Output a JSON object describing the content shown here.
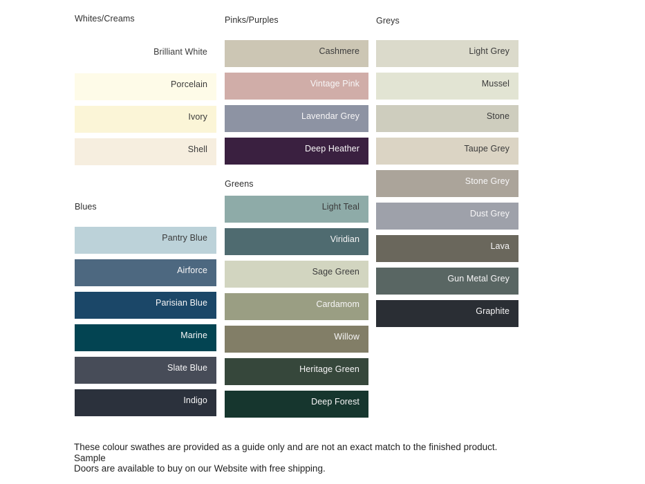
{
  "page": {
    "background": "#ffffff",
    "footer_note": "These colour swathes are provided as a guide only and are not an exact match to the finished product.  Sample\nDoors are available to buy on our Website with free shipping."
  },
  "sections": [
    {
      "id": "whites-creams",
      "title": "Whites/Creams",
      "swatches": [
        {
          "name": "Brilliant White",
          "color": "#ffffff",
          "text": "dark"
        },
        {
          "name": "Porcelain",
          "color": "#fefbe8",
          "text": "dark"
        },
        {
          "name": "Ivory",
          "color": "#fbf5d7",
          "text": "dark"
        },
        {
          "name": "Shell",
          "color": "#f6eedf",
          "text": "dark"
        }
      ]
    },
    {
      "id": "blues",
      "title": "Blues",
      "swatches": [
        {
          "name": "Pantry Blue",
          "color": "#bcd2d9",
          "text": "dark"
        },
        {
          "name": "Airforce",
          "color": "#4d6880",
          "text": "light"
        },
        {
          "name": "Parisian Blue",
          "color": "#1b4768",
          "text": "light"
        },
        {
          "name": "Marine",
          "color": "#034452",
          "text": "light"
        },
        {
          "name": "Slate Blue",
          "color": "#474c58",
          "text": "light"
        },
        {
          "name": "Indigo",
          "color": "#2b313c",
          "text": "light"
        }
      ]
    },
    {
      "id": "pinks-purples",
      "title": "Pinks/Purples",
      "swatches": [
        {
          "name": "Cashmere",
          "color": "#ccc6b4",
          "text": "dark"
        },
        {
          "name": "Vintage Pink",
          "color": "#d0ada8",
          "text": "light"
        },
        {
          "name": "Lavendar Grey",
          "color": "#8d93a3",
          "text": "light"
        },
        {
          "name": "Deep Heather",
          "color": "#3a2040",
          "text": "light"
        }
      ]
    },
    {
      "id": "greens",
      "title": "Greens",
      "swatches": [
        {
          "name": "Light Teal",
          "color": "#8eaba8",
          "text": "dark"
        },
        {
          "name": "Viridian",
          "color": "#4f6b70",
          "text": "light"
        },
        {
          "name": "Sage Green",
          "color": "#d2d5c0",
          "text": "dark"
        },
        {
          "name": "Cardamom",
          "color": "#9a9e83",
          "text": "light"
        },
        {
          "name": "Willow",
          "color": "#827e67",
          "text": "light"
        },
        {
          "name": "Heritage Green",
          "color": "#36473b",
          "text": "light"
        },
        {
          "name": "Deep Forest",
          "color": "#16362e",
          "text": "light"
        }
      ]
    },
    {
      "id": "greys",
      "title": "Greys",
      "swatches": [
        {
          "name": "Light Grey",
          "color": "#dbdacb",
          "text": "dark"
        },
        {
          "name": "Mussel",
          "color": "#e2e4d3",
          "text": "dark"
        },
        {
          "name": "Stone",
          "color": "#cecdbe",
          "text": "dark"
        },
        {
          "name": "Taupe Grey",
          "color": "#dbd4c4",
          "text": "dark"
        },
        {
          "name": "Stone Grey",
          "color": "#aba49a",
          "text": "light"
        },
        {
          "name": "Dust Grey",
          "color": "#9ea1aa",
          "text": "light"
        },
        {
          "name": "Lava",
          "color": "#6a675c",
          "text": "light"
        },
        {
          "name": "Gun Metal Grey",
          "color": "#596663",
          "text": "light"
        },
        {
          "name": "Graphite",
          "color": "#2a2e34",
          "text": "light"
        }
      ]
    }
  ]
}
